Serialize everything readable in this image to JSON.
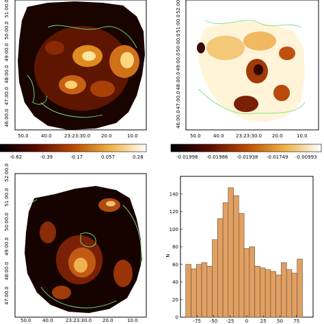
{
  "panels": {
    "top_left": {
      "x_ticks": [
        "50.0",
        "40.0",
        "23:23:30.0",
        "20.0",
        "10.0"
      ],
      "y_ticks": [
        "46:00.0",
        "47:00.0",
        "48:00.0",
        "49:00.0",
        "50:00.0",
        "51:00.0"
      ],
      "colorbar_ticks": [
        "-0.62",
        "-0.39",
        "-0.17",
        "0.057",
        "0.28"
      ]
    },
    "top_right": {
      "x_ticks": [
        "50.0",
        "40.0",
        "23:23:30.0",
        "20.0",
        "10.0"
      ],
      "y_ticks": [
        "46:00.0",
        "47:00.0",
        "48:00.0",
        "49:00.0",
        "50:00.0",
        "51:00.0",
        "52:00.0"
      ],
      "colorbar_ticks": [
        "-0.01998",
        "-0.01986",
        "-0.01938",
        "-0.01749",
        "-0.00993"
      ]
    },
    "bottom_left": {
      "x_ticks": [
        "50.0",
        "40.0",
        "23:23:30.0",
        "20.0",
        "10.0"
      ],
      "y_ticks": [
        "47:00.0",
        "48:00.0",
        "49:00.0",
        "50:00.0",
        "51:00.0",
        "52:00.0"
      ]
    }
  },
  "chart_data": {
    "type": "bar",
    "title": "",
    "xlabel": "",
    "ylabel": "N",
    "xlim": [
      -100,
      100
    ],
    "ylim": [
      0,
      160
    ],
    "x_ticks": [
      "-75",
      "-50",
      "-25",
      "0",
      "25",
      "50",
      "75"
    ],
    "y_ticks": [
      "0",
      "20",
      "40",
      "60",
      "80",
      "100",
      "120",
      "140"
    ],
    "bin_width": 8,
    "bin_centers": [
      -88,
      -80,
      -72,
      -64,
      -56,
      -48,
      -40,
      -32,
      -24,
      -16,
      -8,
      0,
      8,
      16,
      24,
      32,
      40,
      48,
      56,
      64,
      72,
      80,
      88
    ],
    "values": [
      60,
      55,
      60,
      62,
      58,
      88,
      112,
      130,
      147,
      138,
      118,
      78,
      80,
      58,
      56,
      54,
      52,
      48,
      62,
      54,
      50,
      66,
      0
    ],
    "bar_color": "#e0a064",
    "edge_color": "#6b4a2a"
  },
  "colors": {
    "contour": "#7ee07e",
    "frame": "#000000"
  }
}
